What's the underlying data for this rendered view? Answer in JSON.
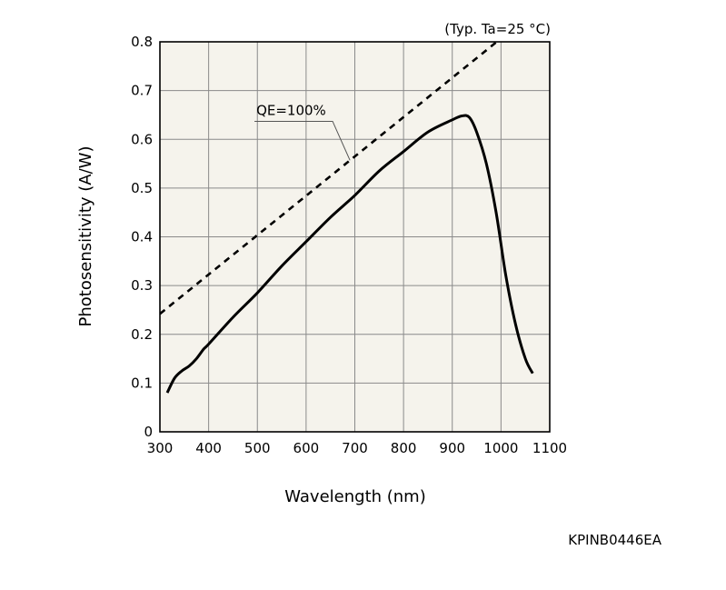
{
  "chart_data": {
    "type": "line",
    "conditions_note": "(Typ. Ta=25 °C)",
    "xlabel": "Wavelength (nm)",
    "ylabel": "Photosensitivity (A/W)",
    "xlim": [
      300,
      1100
    ],
    "ylim": [
      0,
      0.8
    ],
    "x_ticks": [
      300,
      400,
      500,
      600,
      700,
      800,
      900,
      1000,
      1100
    ],
    "x_tick_labels": [
      "300",
      "400",
      "500",
      "600",
      "700",
      "800",
      "900",
      "1000",
      "1100"
    ],
    "y_ticks": [
      0,
      0.1,
      0.2,
      0.3,
      0.4,
      0.5,
      0.6,
      0.7,
      0.8
    ],
    "y_tick_labels": [
      "0",
      "0.1",
      "0.2",
      "0.3",
      "0.4",
      "0.5",
      "0.6",
      "0.7",
      "0.8"
    ],
    "grid": true,
    "plot_background": "#f5f3ec",
    "series": [
      {
        "style": "solid",
        "color": "#000000",
        "x": [
          315,
          330,
          345,
          360,
          375,
          390,
          400,
          450,
          500,
          550,
          600,
          650,
          700,
          750,
          800,
          850,
          900,
          920,
          935,
          950,
          970,
          990,
          1010,
          1030,
          1050,
          1065
        ],
        "y": [
          0.08,
          0.11,
          0.125,
          0.135,
          0.15,
          0.17,
          0.18,
          0.235,
          0.285,
          0.34,
          0.39,
          0.44,
          0.485,
          0.535,
          0.575,
          0.615,
          0.64,
          0.648,
          0.645,
          0.615,
          0.55,
          0.45,
          0.32,
          0.22,
          0.15,
          0.12
        ]
      },
      {
        "name": "QE=100%",
        "style": "dashed",
        "color": "#000000",
        "x": [
          300,
          1000
        ],
        "y": [
          0.242,
          0.807
        ]
      }
    ],
    "annotations": [
      {
        "text": "QE=100%",
        "x": 550,
        "y": 0.635,
        "points_to_x": 690,
        "points_to_y": 0.557
      }
    ],
    "figure_code": "KPINB0446EA"
  }
}
